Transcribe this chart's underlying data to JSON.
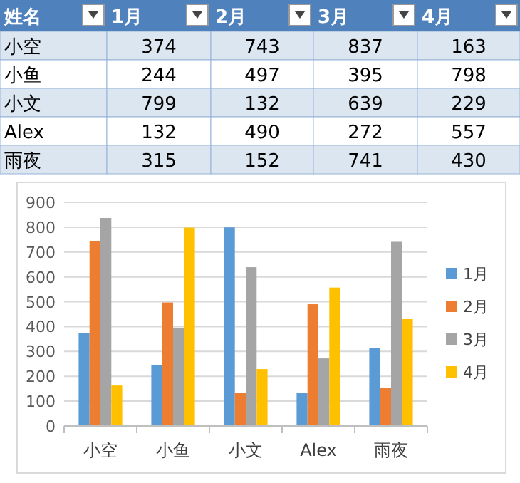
{
  "chart_data": [
    {
      "type": "heatmap",
      "ylabel": "姓名",
      "categories": [
        "1月",
        "2月",
        "3月",
        "4月"
      ],
      "y_categories": [
        "小空",
        "小鱼",
        "小文",
        "Alex",
        "雨夜"
      ],
      "cells": [
        [
          374,
          743,
          837,
          163
        ],
        [
          244,
          497,
          395,
          798
        ],
        [
          799,
          132,
          639,
          229
        ],
        [
          132,
          490,
          272,
          557
        ],
        [
          315,
          152,
          741,
          430
        ]
      ],
      "data_labels": true
    },
    {
      "type": "bar",
      "categories": [
        "小空",
        "小鱼",
        "小文",
        "Alex",
        "雨夜"
      ],
      "series": [
        {
          "name": "1月",
          "color": "#5b9bd5",
          "values": [
            374,
            244,
            799,
            132,
            315
          ]
        },
        {
          "name": "2月",
          "color": "#ed7d31",
          "values": [
            743,
            497,
            132,
            490,
            152
          ]
        },
        {
          "name": "3月",
          "color": "#a5a5a5",
          "values": [
            837,
            395,
            639,
            272,
            741
          ]
        },
        {
          "name": "4月",
          "color": "#ffc000",
          "values": [
            163,
            798,
            229,
            557,
            430
          ]
        }
      ],
      "ylim": [
        0,
        900
      ],
      "yticks": [
        0,
        100,
        200,
        300,
        400,
        500,
        600,
        700,
        800,
        900
      ],
      "grid": "y",
      "legend": "right"
    }
  ]
}
